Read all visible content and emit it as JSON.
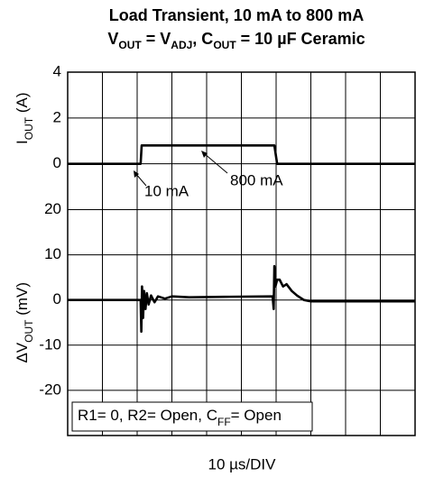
{
  "chart_data": [
    {
      "type": "line",
      "title": "Load Transient, 10 mA to 800 mA",
      "subtitle": [
        "V",
        "OUT",
        " = V",
        "ADJ",
        ", C",
        "OUT",
        " = 10 µF Ceramic"
      ],
      "ylabel": [
        "I",
        "OUT",
        " (A)"
      ],
      "xlim": [
        0,
        100
      ],
      "ylim": [
        -2,
        4
      ],
      "yticks": [
        0,
        2,
        4
      ],
      "grid": true,
      "x": [
        0,
        21,
        21.3,
        59.5,
        60.3,
        100
      ],
      "series": [
        {
          "color": "#000000",
          "values": [
            0,
            0,
            0.8,
            0.8,
            0,
            0
          ]
        }
      ],
      "annotations": [
        "10 mA",
        "800 mA"
      ]
    },
    {
      "type": "line",
      "ylabel": [
        "ΔV",
        "OUT",
        " (mV)"
      ],
      "xlabel": "10 µs/DIV",
      "xlim": [
        0,
        100
      ],
      "ylim": [
        -30,
        20
      ],
      "yticks": [
        -20,
        -10,
        0,
        10,
        20
      ],
      "grid": true,
      "x": [
        0,
        21,
        21.2,
        21.4,
        21.7,
        22,
        22.4,
        22.8,
        23.3,
        24,
        25,
        26,
        28,
        30,
        35,
        45,
        59,
        59.3,
        59.5,
        59.8,
        60.3,
        61,
        62,
        63,
        64.5,
        66,
        68,
        70,
        100
      ],
      "series": [
        {
          "color": "#000000",
          "values": [
            0,
            0,
            -7,
            3,
            -4,
            2,
            -2,
            1.5,
            -1,
            1,
            -0.5,
            0.8,
            0.3,
            0.8,
            0.6,
            0.7,
            0.8,
            -2,
            7.5,
            3,
            4.5,
            4.5,
            3,
            3.5,
            2,
            1,
            0,
            -0.3,
            -0.3
          ]
        }
      ],
      "annotation_box": [
        "R1= 0, R2= Open, C",
        "FF",
        "= Open"
      ]
    }
  ]
}
